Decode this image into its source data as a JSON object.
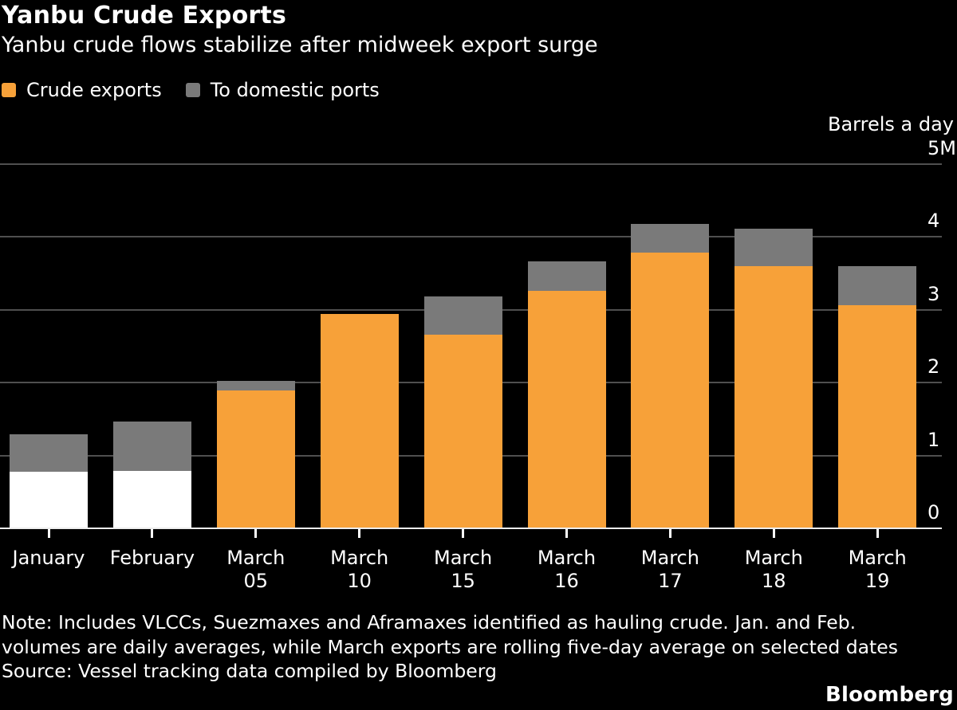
{
  "header": {
    "title": "Yanbu Crude Exports",
    "subtitle": "Yanbu crude flows stabilize after midweek export surge"
  },
  "legend": {
    "items": [
      {
        "label": "Crude exports",
        "color": "#F7A139"
      },
      {
        "label": "To domestic ports",
        "color": "#7A7A7A"
      }
    ]
  },
  "chart_data": {
    "type": "bar",
    "stacked": true,
    "title": "Yanbu Crude Exports",
    "subtitle": "Yanbu crude flows stabilize after midweek export surge",
    "unit_label": "Barrels a day",
    "ylabel": "Barrels a day",
    "xlabel": "",
    "ylim": [
      0,
      5
    ],
    "grid": true,
    "legend_position": "top-left",
    "y_ticks": [
      {
        "label": "5M",
        "value": 5
      },
      {
        "label": "4",
        "value": 4
      },
      {
        "label": "3",
        "value": 3
      },
      {
        "label": "2",
        "value": 2
      },
      {
        "label": "1",
        "value": 1
      },
      {
        "label": "0",
        "value": 0
      }
    ],
    "categories": [
      "January",
      "February",
      "March 05",
      "March 10",
      "March 15",
      "March 16",
      "March 17",
      "March 18",
      "March 19"
    ],
    "category_label_lines": [
      [
        "January"
      ],
      [
        "February"
      ],
      [
        "March",
        "05"
      ],
      [
        "March",
        "10"
      ],
      [
        "March",
        "15"
      ],
      [
        "March",
        "16"
      ],
      [
        "March",
        "17"
      ],
      [
        "March",
        "18"
      ],
      [
        "March",
        "19"
      ]
    ],
    "series": [
      {
        "name": "Crude exports",
        "values": [
          0.78,
          0.79,
          1.89,
          2.94,
          2.66,
          3.26,
          3.78,
          3.6,
          3.06
        ],
        "colors": [
          "#FFFFFF",
          "#FFFFFF",
          "#F7A139",
          "#F7A139",
          "#F7A139",
          "#F7A139",
          "#F7A139",
          "#F7A139",
          "#F7A139"
        ]
      },
      {
        "name": "To domestic ports",
        "values": [
          0.51,
          0.67,
          0.13,
          0,
          0.52,
          0.4,
          0.39,
          0.51,
          0.54
        ],
        "colors": [
          "#7A7A7A",
          "#7A7A7A",
          "#7A7A7A",
          "#7A7A7A",
          "#7A7A7A",
          "#7A7A7A",
          "#7A7A7A",
          "#7A7A7A",
          "#7A7A7A"
        ]
      }
    ]
  },
  "colors": {
    "background": "#000000",
    "text": "#FFFFFF",
    "gridline": "#4F4F4F",
    "baseline": "#ECECEC",
    "crude_exports_orange": "#F7A139",
    "jan_feb_white": "#FFFFFF",
    "domestic_ports_gray": "#7A7A7A"
  },
  "footer": {
    "note": "Note: Includes VLCCs, Suezmaxes and Aframaxes identified as hauling crude. Jan. and Feb. volumes are daily averages, while March exports are rolling five-day average on selected dates",
    "source": "Source: Vessel tracking data compiled by Bloomberg",
    "logo": "Bloomberg"
  }
}
